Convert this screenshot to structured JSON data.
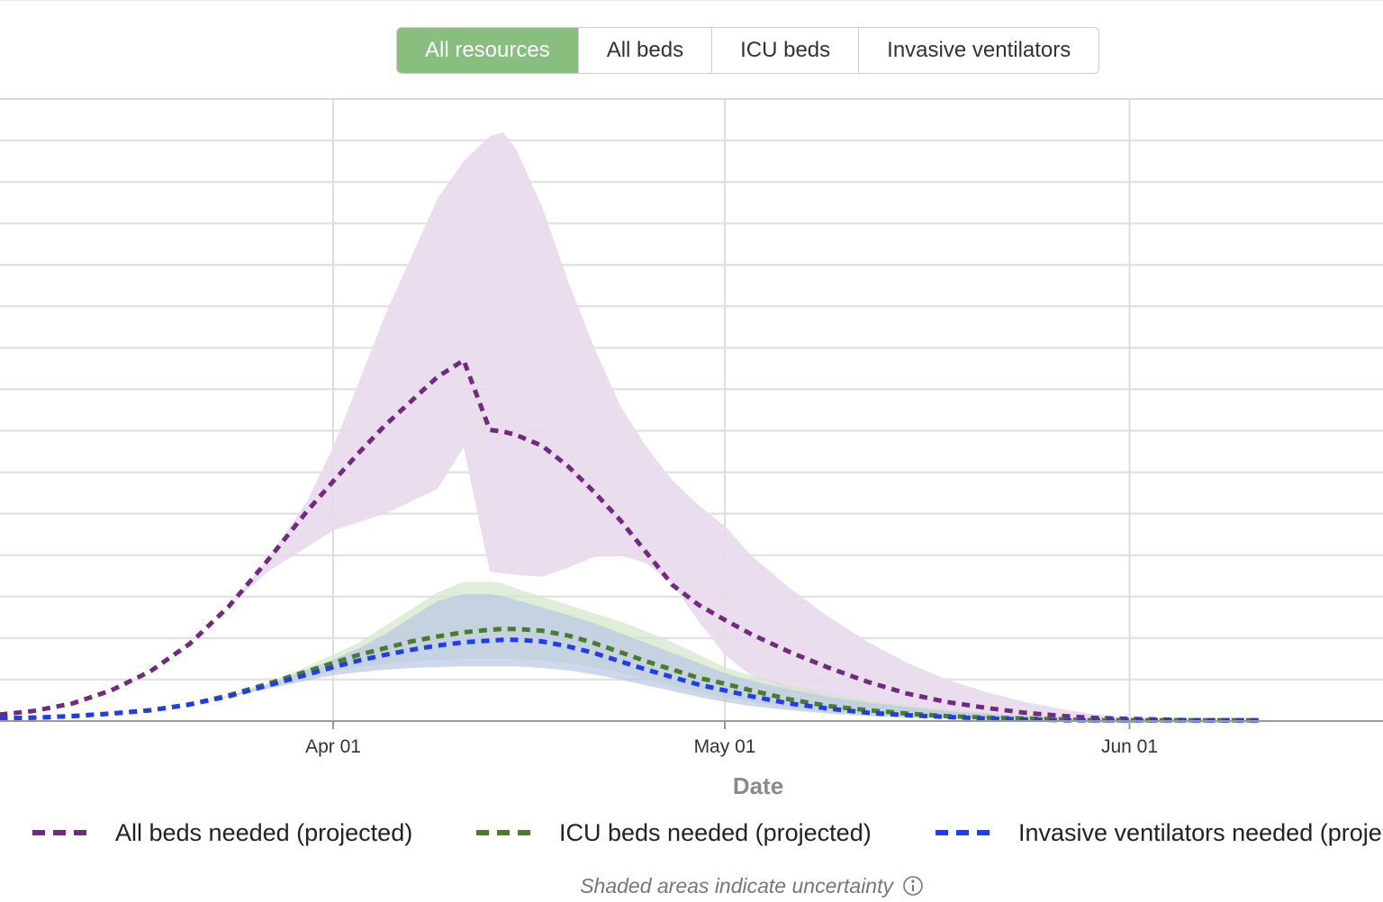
{
  "tabs": [
    {
      "label": "All resources",
      "active": true
    },
    {
      "label": "All beds",
      "active": false
    },
    {
      "label": "ICU beds",
      "active": false
    },
    {
      "label": "Invasive ventilators",
      "active": false
    }
  ],
  "footnote": "Shaded areas indicate uncertainty",
  "chart_data": {
    "type": "line",
    "title": "",
    "xlabel": "Date",
    "ylabel": "",
    "x_range_days": [
      -41,
      71
    ],
    "ylim": [
      0,
      70
    ],
    "y_grid_step": 5,
    "x_ticks": [
      {
        "label": "Apr 01",
        "day": 0
      },
      {
        "label": "May 01",
        "day": 30
      },
      {
        "label": "Jun 01",
        "day": 61
      }
    ],
    "x_days": [
      -41,
      -37,
      -33,
      -29,
      -26,
      -23,
      -20,
      -17,
      -14,
      -11,
      -8,
      -5,
      -2,
      0,
      2,
      4,
      6,
      8,
      10,
      12,
      13,
      14,
      16,
      18,
      20,
      22,
      24,
      26,
      28,
      30,
      32,
      35,
      38,
      41,
      44,
      47,
      50,
      53,
      56,
      58,
      60,
      63,
      66,
      71
    ],
    "series": [
      {
        "name": "All beds needed (projected)",
        "color": "#722a80",
        "band_color": "#e8d9ec",
        "mean": [
          0.1,
          0.1,
          0.2,
          0.4,
          0.7,
          1.2,
          2.1,
          3.7,
          6.0,
          9.3,
          13.8,
          19.4,
          25.3,
          28.9,
          32.4,
          35.7,
          38.6,
          41.5,
          43.5,
          35.1,
          34.9,
          34.5,
          33.2,
          30.7,
          27.6,
          24.2,
          20.3,
          16.4,
          14.0,
          12.2,
          10.5,
          8.3,
          6.4,
          4.7,
          3.3,
          2.3,
          1.6,
          1.0,
          0.6,
          0.4,
          0.3,
          0.2,
          0.1,
          0.1
        ],
        "lower": [
          0.1,
          0.1,
          0.2,
          0.4,
          0.7,
          1.2,
          2.1,
          3.7,
          6.0,
          9.3,
          13.8,
          18.0,
          21.0,
          23.0,
          24.0,
          25.0,
          26.5,
          28.0,
          33.0,
          18.0,
          17.8,
          17.6,
          17.4,
          18.5,
          19.8,
          20.0,
          19.0,
          16.5,
          12.0,
          8.0,
          5.5,
          3.7,
          2.4,
          1.6,
          1.1,
          0.8,
          0.5,
          0.3,
          0.2,
          0.15,
          0.1,
          0.1,
          0.1,
          0.1
        ],
        "upper": [
          0.1,
          0.1,
          0.2,
          0.4,
          0.7,
          1.2,
          2.1,
          3.7,
          6.0,
          9.3,
          13.8,
          19.5,
          26.5,
          33.0,
          41.0,
          49.0,
          56.0,
          63.0,
          67.5,
          70.5,
          71.0,
          69.0,
          62.0,
          53.0,
          45.0,
          38.0,
          33.0,
          29.0,
          26.0,
          23.5,
          20.0,
          16.0,
          12.5,
          9.5,
          7.0,
          5.0,
          3.5,
          2.3,
          1.4,
          0.9,
          0.5,
          0.3,
          0.2,
          0.1
        ]
      },
      {
        "name": "ICU beds needed (projected)",
        "color": "#4a7d2a",
        "band_color": "#d3e6c8",
        "mean": [
          0.1,
          0.1,
          0.1,
          0.2,
          0.3,
          0.4,
          0.6,
          0.9,
          1.3,
          2.0,
          3.1,
          4.5,
          6.0,
          7.0,
          8.0,
          8.8,
          9.6,
          10.2,
          10.7,
          11.0,
          11.1,
          11.1,
          10.9,
          10.3,
          9.4,
          8.3,
          7.2,
          6.2,
          5.2,
          4.5,
          3.7,
          2.6,
          1.8,
          1.3,
          0.9,
          0.6,
          0.4,
          0.3,
          0.2,
          0.1,
          0.1,
          0.1,
          0.1,
          0.1
        ],
        "lower": [
          0.1,
          0.1,
          0.1,
          0.2,
          0.3,
          0.4,
          0.6,
          0.9,
          1.3,
          2.0,
          3.0,
          4.1,
          5.2,
          6.0,
          6.5,
          6.9,
          7.2,
          7.4,
          7.5,
          7.5,
          7.5,
          7.5,
          7.3,
          7.0,
          6.5,
          5.8,
          5.0,
          4.2,
          3.5,
          2.8,
          2.3,
          1.6,
          1.1,
          0.8,
          0.5,
          0.4,
          0.3,
          0.2,
          0.1,
          0.1,
          0.1,
          0.1,
          0.1,
          0.1
        ],
        "upper": [
          0.1,
          0.1,
          0.1,
          0.2,
          0.3,
          0.4,
          0.6,
          0.9,
          1.3,
          2.0,
          3.1,
          4.6,
          6.6,
          8.0,
          9.5,
          11.5,
          13.5,
          15.5,
          16.8,
          16.8,
          16.6,
          16.0,
          15.0,
          14.0,
          13.0,
          12.0,
          10.8,
          9.5,
          8.0,
          6.5,
          5.5,
          4.3,
          3.3,
          2.5,
          1.9,
          1.4,
          1.0,
          0.7,
          0.4,
          0.3,
          0.2,
          0.1,
          0.1,
          0.1
        ]
      },
      {
        "name": "Invasive ventilators needed (projected)",
        "color": "#1f3df0",
        "band_color": "#b9c7e6",
        "mean": [
          0.1,
          0.1,
          0.1,
          0.2,
          0.3,
          0.4,
          0.6,
          0.9,
          1.3,
          2.0,
          3.0,
          4.3,
          5.6,
          6.5,
          7.3,
          8.0,
          8.6,
          9.1,
          9.5,
          9.7,
          9.8,
          9.8,
          9.6,
          9.0,
          8.2,
          7.2,
          6.2,
          5.3,
          4.4,
          3.7,
          3.0,
          2.1,
          1.5,
          1.0,
          0.7,
          0.5,
          0.3,
          0.2,
          0.1,
          0.1,
          0.1,
          0.1,
          0.1,
          0.1
        ],
        "lower": [
          0.1,
          0.1,
          0.1,
          0.2,
          0.3,
          0.4,
          0.6,
          0.9,
          1.3,
          2.0,
          2.9,
          3.9,
          4.9,
          5.5,
          5.9,
          6.2,
          6.4,
          6.5,
          6.6,
          6.6,
          6.6,
          6.6,
          6.4,
          6.1,
          5.6,
          5.0,
          4.3,
          3.6,
          2.9,
          2.3,
          1.8,
          1.3,
          0.9,
          0.6,
          0.4,
          0.3,
          0.2,
          0.1,
          0.1,
          0.1,
          0.1,
          0.1,
          0.1,
          0.1
        ],
        "upper": [
          0.1,
          0.1,
          0.1,
          0.2,
          0.3,
          0.4,
          0.6,
          0.9,
          1.3,
          2.0,
          3.0,
          4.4,
          6.2,
          7.4,
          8.8,
          10.5,
          12.5,
          14.5,
          15.3,
          15.3,
          15.1,
          14.6,
          13.7,
          12.8,
          11.8,
          10.6,
          9.4,
          8.2,
          7.0,
          5.8,
          4.9,
          3.8,
          2.9,
          2.2,
          1.7,
          1.2,
          0.9,
          0.6,
          0.4,
          0.2,
          0.1,
          0.1,
          0.1,
          0.1
        ]
      }
    ],
    "legend_position": "bottom",
    "grid": true
  }
}
